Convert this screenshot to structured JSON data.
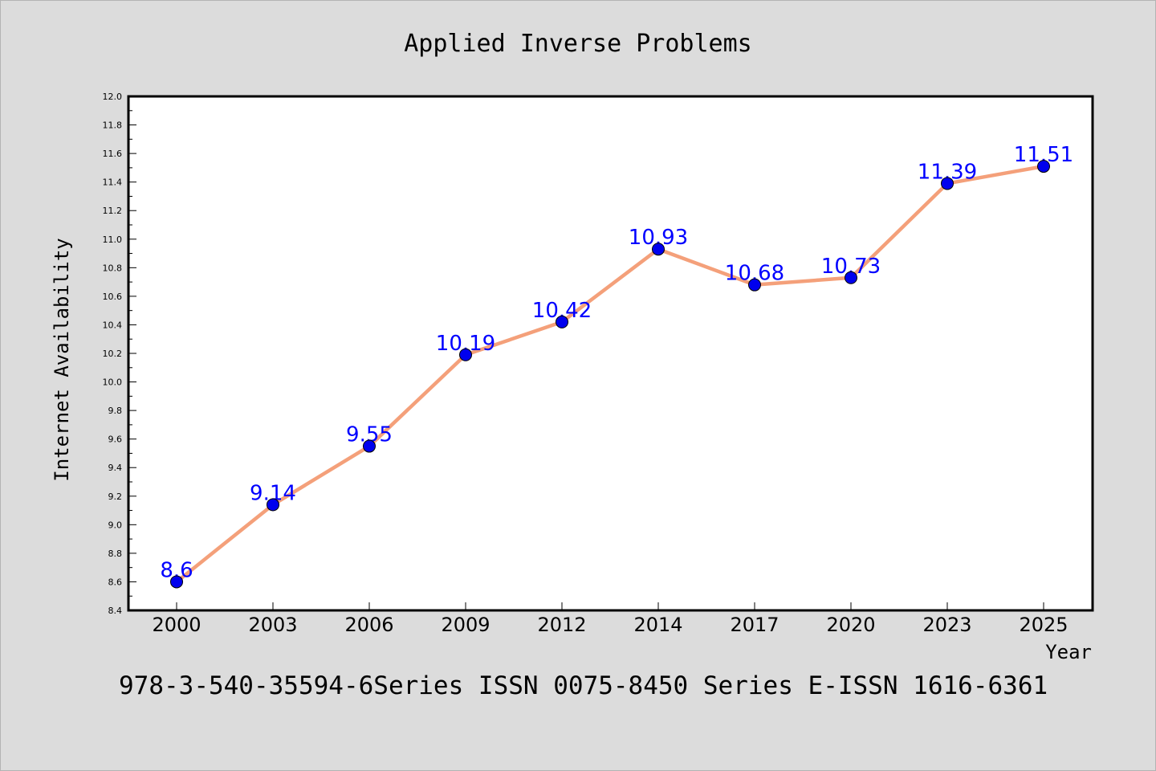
{
  "chart_data": {
    "type": "line",
    "title": "Applied Inverse Problems",
    "xlabel": "Year",
    "ylabel": "Internet Availability",
    "categories": [
      "2000",
      "2003",
      "2006",
      "2009",
      "2012",
      "2014",
      "2017",
      "2020",
      "2023",
      "2025"
    ],
    "series": [
      {
        "values": [
          8.6,
          9.14,
          9.55,
          10.19,
          10.42,
          10.93,
          10.68,
          10.73,
          11.39,
          11.51
        ],
        "data_labels": [
          "8.6",
          "9.14",
          "9.55",
          "10.19",
          "10.42",
          "10.93",
          "10.68",
          "10.73",
          "11.39",
          "11.51"
        ],
        "line_color": "#f4a07a",
        "marker_color": "#0000ee"
      }
    ],
    "ylim": [
      8.4,
      12.0
    ],
    "yticks": [
      "8.4",
      "8.6",
      "8.8",
      "9.0",
      "9.2",
      "9.4",
      "9.6",
      "9.8",
      "10.0",
      "10.2",
      "10.4",
      "10.6",
      "10.8",
      "11.0",
      "11.2",
      "11.4",
      "11.6",
      "11.8",
      "12.0"
    ],
    "grid": false,
    "footer": "978-3-540-35594-6Series ISSN 0075-8450 Series E-ISSN 1616-6361"
  },
  "colors": {
    "background": "#dcdcdc",
    "plot_background": "#ffffff",
    "line": "#f4a07a",
    "marker": "#0000ee",
    "data_label": "#0000ff"
  }
}
